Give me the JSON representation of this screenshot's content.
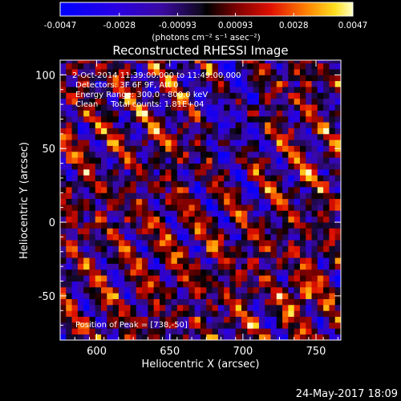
{
  "colorbar": {
    "ticks": [
      "-0.0047",
      "-0.0028",
      "-0.00093",
      "0.00093",
      "0.0028",
      "0.0047"
    ],
    "unit_label": "(photons cm⁻² s⁻¹ asec⁻²)",
    "range": [
      -0.0047,
      0.0047
    ]
  },
  "chart_data": {
    "type": "heatmap",
    "title": "Reconstructed RHESSI Image",
    "xlabel": "Heliocentric X (arcsec)",
    "ylabel": "Heliocentric Y (arcsec)",
    "xlim": [
      575,
      767
    ],
    "ylim": [
      -80,
      110
    ],
    "x_ticks": [
      600,
      650,
      700,
      750
    ],
    "y_ticks": [
      -50,
      0,
      50,
      100
    ],
    "annotations": [
      "2-Oct-2014 11:39:00.000 to 11:49:00.000",
      "Detectors: 3F 6F 9F, Att 0",
      "Energy Range: 300.0 - 800.0 keV",
      "Clean     Total counts: 1.81E+04"
    ],
    "peak_label": "Position of Peak = [738,-50]",
    "peak": [
      738,
      -50
    ],
    "pixel_size_arcsec": 4
  },
  "footer": {
    "date": "24-May-2017 18:09"
  }
}
